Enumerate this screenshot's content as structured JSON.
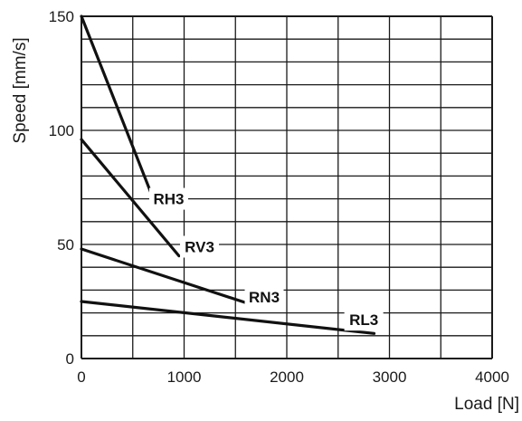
{
  "chart_data": {
    "type": "line",
    "title": "",
    "xlabel": "Load [N]",
    "ylabel": "Speed [mm/s]",
    "xlim": [
      0,
      4000
    ],
    "ylim": [
      0,
      150
    ],
    "x_ticks": [
      0,
      1000,
      2000,
      3000,
      4000
    ],
    "x_tick_labels": [
      "0",
      "1000",
      "2000",
      "3000",
      "4000"
    ],
    "y_ticks": [
      0,
      50,
      100,
      150
    ],
    "y_tick_labels": [
      "0",
      "50",
      "100",
      "150"
    ],
    "grid": true,
    "x_grid_step": 500,
    "y_grid_step": 10,
    "legend": "none",
    "line_color": "#111111",
    "grid_color": "#1a1a1a",
    "series": [
      {
        "name": "RH3",
        "points": [
          [
            0,
            150
          ],
          [
            700,
            70
          ]
        ],
        "label_at": [
          850,
          70
        ]
      },
      {
        "name": "RV3",
        "points": [
          [
            0,
            96
          ],
          [
            950,
            45
          ]
        ],
        "label_at": [
          1150,
          49
        ]
      },
      {
        "name": "RN3",
        "points": [
          [
            0,
            48
          ],
          [
            1700,
            23
          ]
        ],
        "label_at": [
          1780,
          27
        ]
      },
      {
        "name": "RL3",
        "points": [
          [
            0,
            25
          ],
          [
            2850,
            11
          ]
        ],
        "label_at": [
          2750,
          17
        ]
      }
    ]
  }
}
